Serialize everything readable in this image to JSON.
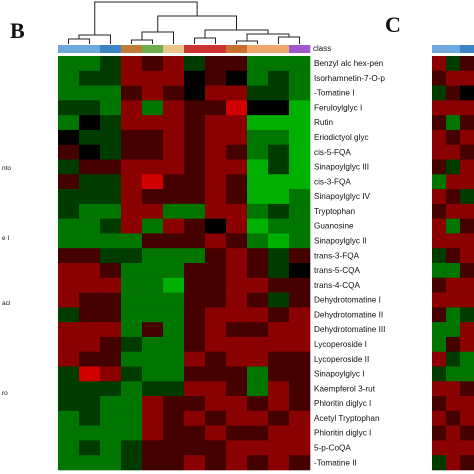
{
  "figure": {
    "panel_b_label": "B",
    "panel_c_label": "C",
    "class_label": "class",
    "left_edge_fragments": [
      "nto",
      "e I",
      "aci",
      "ro"
    ]
  },
  "chart_data": {
    "type": "heatmap",
    "panel": "B",
    "class_colors": [
      "#6fa8dc",
      "#6fa8dc",
      "#3d85c6",
      "#c27a3a",
      "#6ab04c",
      "#e8c58a",
      "#cc3333",
      "#cc3333",
      "#c9702f",
      "#f0a86a",
      "#f0a86a",
      "#9b59d0"
    ],
    "row_labels": [
      "Benzyl alc hex-pen",
      "Isorhamnetin-7-O-p",
      "-Tomatine I",
      "Feruloylglyc I",
      "Rutin",
      "Eriodictyol glyc",
      "cis-5-FQA",
      "Sinapoylglyc III",
      "cis-3-FQA",
      "Sinapoylglyc IV",
      "Tryptophan",
      "Guanosine",
      "Sinapoylglyc II",
      "trans-3-FQA",
      "trans-5-CQA",
      "trans-4-CQA",
      "Dehydrotomatine I",
      "Dehydrotomatine II",
      "Dehydrotomatine III",
      "Lycoperoside I",
      "Lycoperoside II",
      "Sinapoylglyc I",
      "Kaempferol 3-rut",
      "Phloritin diglyc I",
      "Acetyl Tryptophan",
      "Phloritin diglyc I",
      "5-p-CoQA",
      "-Tomatine II"
    ],
    "values": [
      [
        -2,
        -2,
        -1,
        2,
        1,
        2,
        -1,
        1,
        1,
        -2,
        -2,
        -2
      ],
      [
        -2,
        -1,
        -1,
        2,
        2,
        2,
        0,
        1,
        0,
        -2,
        -1,
        -2
      ],
      [
        -2,
        -2,
        -2,
        1,
        2,
        1,
        0,
        2,
        2,
        -1,
        -1,
        -2
      ],
      [
        -1,
        -1,
        -2,
        2,
        -2,
        2,
        1,
        1,
        3,
        0,
        0,
        -3
      ],
      [
        -2,
        0,
        -1,
        2,
        2,
        2,
        1,
        2,
        2,
        -3,
        -3,
        -3
      ],
      [
        0,
        -1,
        -1,
        1,
        1,
        2,
        1,
        2,
        2,
        -2,
        -2,
        -3
      ],
      [
        1,
        0,
        -1,
        1,
        1,
        2,
        1,
        2,
        1,
        -2,
        -1,
        -3
      ],
      [
        -1,
        1,
        1,
        2,
        2,
        2,
        1,
        2,
        2,
        -3,
        -1,
        -3
      ],
      [
        1,
        -1,
        -1,
        2,
        3,
        1,
        1,
        2,
        1,
        -3,
        -3,
        -3
      ],
      [
        -1,
        -1,
        -1,
        2,
        1,
        1,
        1,
        2,
        1,
        -3,
        -3,
        -2
      ],
      [
        -1,
        -2,
        -2,
        2,
        2,
        -2,
        -2,
        2,
        2,
        -2,
        -1,
        -2
      ],
      [
        -2,
        -2,
        -1,
        2,
        -2,
        2,
        1,
        0,
        2,
        -3,
        -2,
        -2
      ],
      [
        -2,
        -2,
        -2,
        -2,
        1,
        1,
        1,
        2,
        1,
        -2,
        -3,
        -2
      ],
      [
        1,
        1,
        -1,
        -1,
        -2,
        -2,
        -2,
        1,
        2,
        1,
        -1,
        1
      ],
      [
        2,
        2,
        1,
        -2,
        -2,
        -2,
        1,
        1,
        2,
        1,
        -1,
        0
      ],
      [
        2,
        2,
        2,
        -2,
        -2,
        -3,
        1,
        1,
        2,
        2,
        1,
        1
      ],
      [
        2,
        1,
        1,
        -2,
        -2,
        -2,
        1,
        1,
        2,
        1,
        -1,
        1
      ],
      [
        -1,
        1,
        1,
        -2,
        -2,
        -2,
        1,
        2,
        2,
        2,
        1,
        2
      ],
      [
        2,
        2,
        2,
        -2,
        1,
        -2,
        1,
        2,
        1,
        1,
        2,
        2
      ],
      [
        2,
        2,
        1,
        -1,
        -2,
        -2,
        1,
        2,
        2,
        2,
        2,
        2
      ],
      [
        2,
        1,
        1,
        -2,
        -2,
        -2,
        2,
        1,
        2,
        2,
        1,
        1
      ],
      [
        -1,
        3,
        2,
        -1,
        -2,
        -2,
        1,
        1,
        1,
        -2,
        1,
        1
      ],
      [
        -1,
        -1,
        -1,
        -2,
        -1,
        -1,
        2,
        2,
        1,
        -2,
        2,
        1
      ],
      [
        -1,
        -1,
        -2,
        -2,
        2,
        1,
        1,
        2,
        2,
        1,
        2,
        1
      ],
      [
        -2,
        -1,
        -2,
        -2,
        2,
        1,
        2,
        1,
        2,
        2,
        1,
        2
      ],
      [
        -2,
        -2,
        -2,
        -2,
        2,
        1,
        1,
        2,
        1,
        1,
        2,
        2
      ],
      [
        -2,
        -1,
        -2,
        -1,
        1,
        1,
        1,
        1,
        2,
        2,
        2,
        2
      ],
      [
        -2,
        -2,
        -2,
        -1,
        1,
        1,
        2,
        1,
        2,
        1,
        2,
        1
      ]
    ],
    "color_scale": {
      "low": "#00b000",
      "mid": "#000000",
      "high": "#d00000",
      "range": [
        -3,
        3
      ]
    },
    "panel_c": {
      "class_colors": [
        "#6fa8dc",
        "#6fa8dc",
        "#3d85c6"
      ],
      "values": [
        [
          2,
          -1,
          1
        ],
        [
          1,
          2,
          2
        ],
        [
          -1,
          1,
          0
        ],
        [
          2,
          2,
          2
        ],
        [
          1,
          -2,
          1
        ],
        [
          2,
          1,
          2
        ],
        [
          2,
          2,
          1
        ],
        [
          1,
          -1,
          2
        ],
        [
          -2,
          2,
          2
        ],
        [
          2,
          1,
          -1
        ],
        [
          1,
          2,
          2
        ],
        [
          2,
          -2,
          1
        ],
        [
          2,
          2,
          2
        ],
        [
          -1,
          1,
          2
        ],
        [
          -2,
          -2,
          1
        ],
        [
          1,
          2,
          2
        ],
        [
          2,
          2,
          2
        ],
        [
          1,
          -2,
          -1
        ],
        [
          -2,
          -2,
          2
        ],
        [
          -2,
          1,
          2
        ],
        [
          2,
          -1,
          -2
        ],
        [
          -1,
          -2,
          -2
        ],
        [
          2,
          2,
          1
        ],
        [
          1,
          2,
          2
        ],
        [
          2,
          1,
          2
        ],
        [
          1,
          2,
          1
        ],
        [
          2,
          2,
          2
        ],
        [
          -1,
          2,
          1
        ]
      ]
    }
  }
}
